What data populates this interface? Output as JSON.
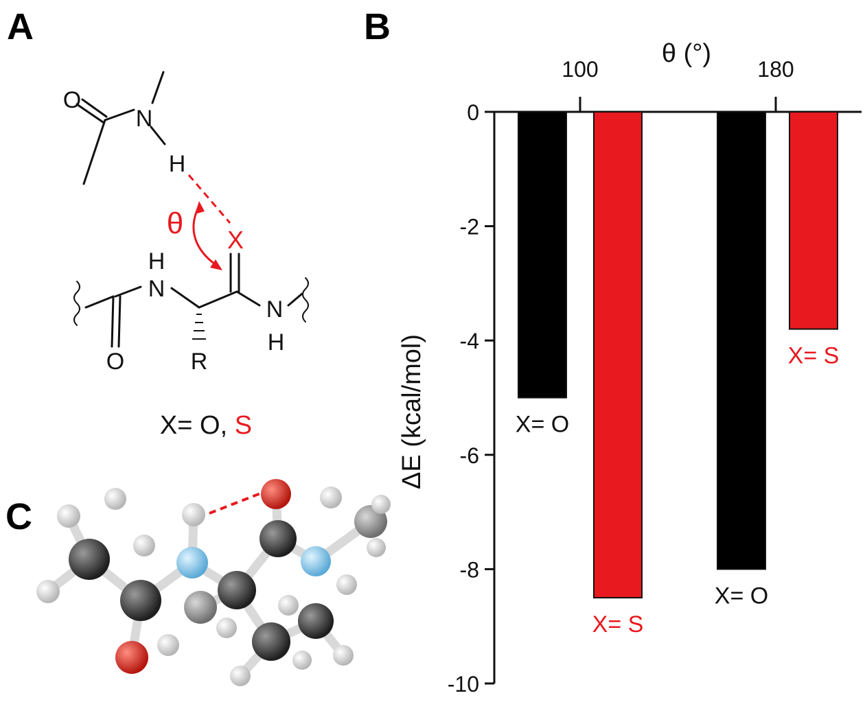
{
  "panels": {
    "a": "A",
    "b": "B",
    "c": "C"
  },
  "scheme": {
    "atoms": {
      "o_top": "O",
      "n_top": "N",
      "h_top": "H",
      "theta": "θ",
      "x_atom": "X",
      "h_nh_left": "H",
      "n_left": "N",
      "n_right": "N",
      "h_nh_right": "H",
      "o_bottom": "O",
      "r_group": "R"
    },
    "caption": {
      "prefix": "X= O, ",
      "sulfur": "S"
    }
  },
  "colors": {
    "oxygen_bar": "#000000",
    "sulfur_bar": "#e8191f",
    "red_text": "#e8191f"
  },
  "chart_data": {
    "type": "bar",
    "title": "",
    "xlabel": "θ (°)",
    "ylabel": "ΔE (kcal/mol)",
    "ylim": [
      -10,
      0
    ],
    "yticks": [
      0,
      -2,
      -4,
      -6,
      -8,
      -10
    ],
    "ytick_labels": [
      "0",
      "-2",
      "-4",
      "-6",
      "-8",
      "-10"
    ],
    "xticks": [
      "100",
      "180"
    ],
    "bars": [
      {
        "label": "X= O",
        "value": -5.0,
        "color": "#000000",
        "theta_group": "100"
      },
      {
        "label": "X= S",
        "value": -8.5,
        "color": "#e8191f",
        "theta_group": "100"
      },
      {
        "label": "X= O",
        "value": -8.0,
        "color": "#000000",
        "theta_group": "180"
      },
      {
        "label": "X= S",
        "value": -3.8,
        "color": "#e8191f",
        "theta_group": "180"
      }
    ]
  }
}
